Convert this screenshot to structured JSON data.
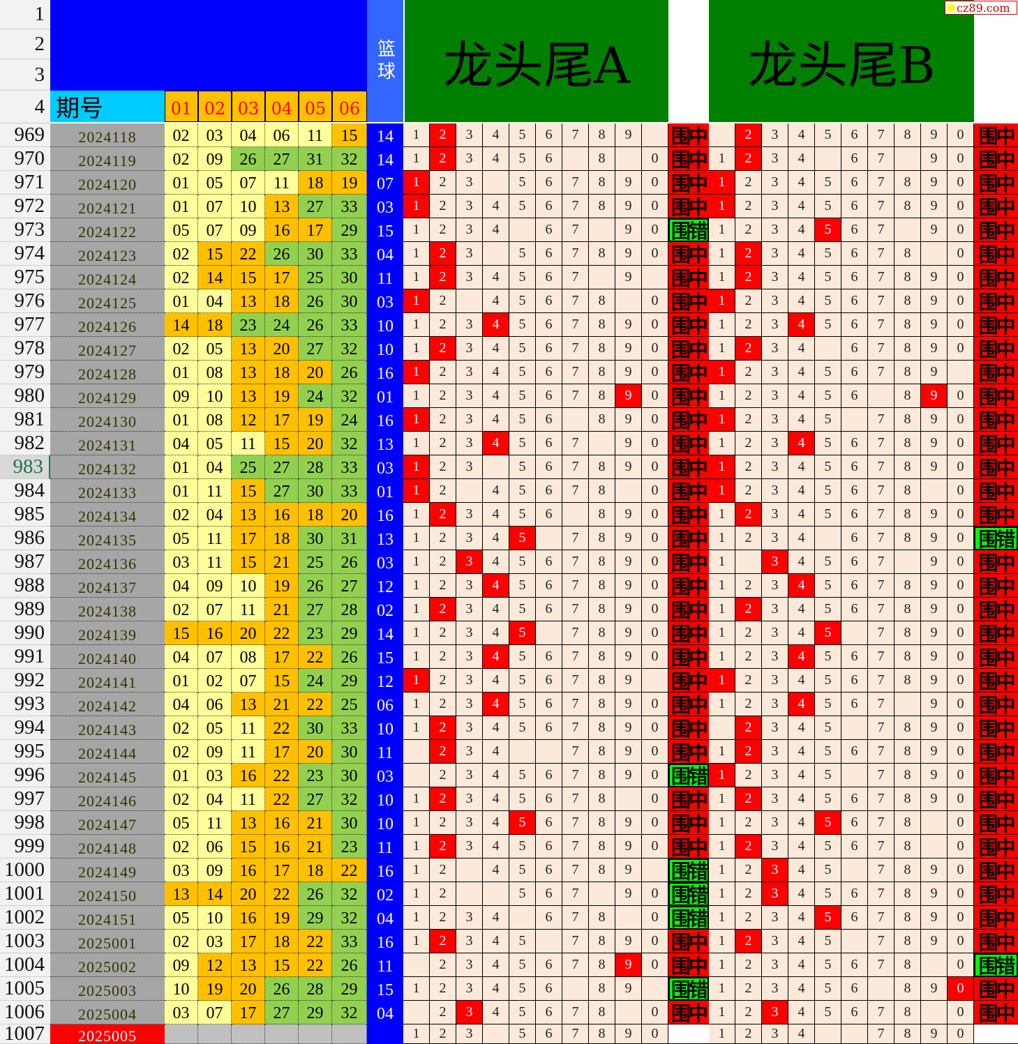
{
  "header": {
    "row_labels": [
      "1",
      "2",
      "3",
      "4"
    ],
    "period_label": "期号",
    "num_labels": [
      "01",
      "02",
      "03",
      "04",
      "05",
      "06"
    ],
    "blue_label": "篮球",
    "panel_a_title": "龙头尾A",
    "panel_b_title": "龙头尾B",
    "watermark": "cz89.com"
  },
  "colors": {
    "low": "#ffff99",
    "mid": "#ffc000",
    "high": "#92d050",
    "hit": "#ff0000",
    "hit_result": "#ff0000",
    "miss_result": "#00ff00",
    "blue": "#0000ff",
    "grid": "#fde9d9"
  },
  "digits": [
    "1",
    "2",
    "3",
    "4",
    "5",
    "6",
    "7",
    "8",
    "9",
    "0"
  ],
  "rows": [
    {
      "row": "969",
      "period": "2024118",
      "nums": [
        "02",
        "03",
        "04",
        "06",
        "11",
        "15"
      ],
      "blue": "14",
      "a_missing": [
        "0"
      ],
      "a_result": "围中",
      "b_missing": [
        "1"
      ],
      "b_result": "围中"
    },
    {
      "row": "970",
      "period": "2024119",
      "nums": [
        "02",
        "09",
        "26",
        "27",
        "31",
        "32"
      ],
      "blue": "14",
      "a_missing": [
        "7",
        "9"
      ],
      "a_result": "围中",
      "b_missing": [
        "5",
        "8"
      ],
      "b_result": "围中"
    },
    {
      "row": "971",
      "period": "2024120",
      "nums": [
        "01",
        "05",
        "07",
        "11",
        "18",
        "19"
      ],
      "blue": "07",
      "a_missing": [
        "4"
      ],
      "a_result": "围中",
      "b_missing": [],
      "b_result": "围中"
    },
    {
      "row": "972",
      "period": "2024121",
      "nums": [
        "01",
        "07",
        "10",
        "13",
        "27",
        "33"
      ],
      "blue": "03",
      "a_missing": [],
      "a_result": "围中",
      "b_missing": [],
      "b_result": "围中"
    },
    {
      "row": "973",
      "period": "2024122",
      "nums": [
        "05",
        "07",
        "09",
        "16",
        "17",
        "29"
      ],
      "blue": "15",
      "a_missing": [
        "5",
        "8"
      ],
      "a_result": "围错",
      "b_missing": [
        "8"
      ],
      "b_result": "围中"
    },
    {
      "row": "974",
      "period": "2024123",
      "nums": [
        "02",
        "15",
        "22",
        "26",
        "30",
        "33"
      ],
      "blue": "04",
      "a_missing": [
        "4"
      ],
      "a_result": "围中",
      "b_missing": [
        "9"
      ],
      "b_result": "围中"
    },
    {
      "row": "975",
      "period": "2024124",
      "nums": [
        "02",
        "14",
        "15",
        "17",
        "25",
        "30"
      ],
      "blue": "11",
      "a_missing": [
        "8",
        "0"
      ],
      "a_result": "围中",
      "b_missing": [],
      "b_result": "围中"
    },
    {
      "row": "976",
      "period": "2024125",
      "nums": [
        "01",
        "04",
        "13",
        "18",
        "26",
        "30"
      ],
      "blue": "03",
      "a_missing": [
        "3",
        "9"
      ],
      "a_result": "围中",
      "b_missing": [],
      "b_result": "围中"
    },
    {
      "row": "977",
      "period": "2024126",
      "nums": [
        "14",
        "18",
        "23",
        "24",
        "26",
        "33"
      ],
      "blue": "10",
      "a_missing": [],
      "a_result": "围中",
      "b_missing": [],
      "b_result": "围中"
    },
    {
      "row": "978",
      "period": "2024127",
      "nums": [
        "02",
        "05",
        "13",
        "20",
        "27",
        "32"
      ],
      "blue": "10",
      "a_missing": [],
      "a_result": "围中",
      "b_missing": [
        "5"
      ],
      "b_result": "围中"
    },
    {
      "row": "979",
      "period": "2024128",
      "nums": [
        "01",
        "08",
        "13",
        "18",
        "20",
        "26"
      ],
      "blue": "16",
      "a_missing": [],
      "a_result": "围中",
      "b_missing": [
        "0"
      ],
      "b_result": "围中"
    },
    {
      "row": "980",
      "period": "2024129",
      "nums": [
        "09",
        "10",
        "13",
        "19",
        "24",
        "32"
      ],
      "blue": "01",
      "a_missing": [],
      "a_result": "围中",
      "b_missing": [
        "7"
      ],
      "b_result": "围中"
    },
    {
      "row": "981",
      "period": "2024130",
      "nums": [
        "01",
        "08",
        "12",
        "17",
        "19",
        "24"
      ],
      "blue": "16",
      "a_missing": [
        "7"
      ],
      "a_result": "围中",
      "b_missing": [
        "6"
      ],
      "b_result": "围中"
    },
    {
      "row": "982",
      "period": "2024131",
      "nums": [
        "04",
        "05",
        "11",
        "15",
        "20",
        "32"
      ],
      "blue": "13",
      "a_missing": [
        "8"
      ],
      "a_result": "围中",
      "b_missing": [],
      "b_result": "围中"
    },
    {
      "row": "983",
      "period": "2024132",
      "nums": [
        "01",
        "04",
        "25",
        "27",
        "28",
        "33"
      ],
      "blue": "03",
      "a_missing": [
        "4"
      ],
      "a_result": "围中",
      "b_missing": [],
      "b_result": "围中"
    },
    {
      "row": "984",
      "period": "2024133",
      "nums": [
        "01",
        "11",
        "15",
        "27",
        "30",
        "33"
      ],
      "blue": "01",
      "a_missing": [
        "3",
        "9"
      ],
      "a_result": "围中",
      "b_missing": [
        "9"
      ],
      "b_result": "围中"
    },
    {
      "row": "985",
      "period": "2024134",
      "nums": [
        "02",
        "04",
        "13",
        "16",
        "18",
        "20"
      ],
      "blue": "16",
      "a_missing": [
        "7"
      ],
      "a_result": "围中",
      "b_missing": [],
      "b_result": "围中"
    },
    {
      "row": "986",
      "period": "2024135",
      "nums": [
        "05",
        "11",
        "17",
        "18",
        "30",
        "31"
      ],
      "blue": "13",
      "a_missing": [
        "6"
      ],
      "a_result": "围中",
      "b_missing": [
        "5"
      ],
      "b_result": "围错"
    },
    {
      "row": "987",
      "period": "2024136",
      "nums": [
        "03",
        "11",
        "15",
        "21",
        "25",
        "26"
      ],
      "blue": "03",
      "a_missing": [],
      "a_result": "围中",
      "b_missing": [
        "2",
        "8"
      ],
      "b_result": "围中"
    },
    {
      "row": "988",
      "period": "2024137",
      "nums": [
        "04",
        "09",
        "10",
        "19",
        "26",
        "27"
      ],
      "blue": "12",
      "a_missing": [],
      "a_result": "围中",
      "b_missing": [],
      "b_result": "围中"
    },
    {
      "row": "989",
      "period": "2024138",
      "nums": [
        "02",
        "07",
        "11",
        "21",
        "27",
        "28"
      ],
      "blue": "02",
      "a_missing": [],
      "a_result": "围中",
      "b_missing": [],
      "b_result": "围中"
    },
    {
      "row": "990",
      "period": "2024139",
      "nums": [
        "15",
        "16",
        "20",
        "22",
        "23",
        "29"
      ],
      "blue": "14",
      "a_missing": [
        "6"
      ],
      "a_result": "围中",
      "b_missing": [
        "6"
      ],
      "b_result": "围中"
    },
    {
      "row": "991",
      "period": "2024140",
      "nums": [
        "04",
        "07",
        "08",
        "17",
        "22",
        "26"
      ],
      "blue": "15",
      "a_missing": [],
      "a_result": "围中",
      "b_missing": [],
      "b_result": "围中"
    },
    {
      "row": "992",
      "period": "2024141",
      "nums": [
        "01",
        "02",
        "07",
        "15",
        "24",
        "29"
      ],
      "blue": "12",
      "a_missing": [
        "0"
      ],
      "a_result": "围中",
      "b_missing": [],
      "b_result": "围中"
    },
    {
      "row": "993",
      "period": "2024142",
      "nums": [
        "04",
        "06",
        "13",
        "21",
        "22",
        "25"
      ],
      "blue": "06",
      "a_missing": [],
      "a_result": "围中",
      "b_missing": [
        "8"
      ],
      "b_result": "围中"
    },
    {
      "row": "994",
      "period": "2024143",
      "nums": [
        "02",
        "05",
        "11",
        "22",
        "30",
        "33"
      ],
      "blue": "10",
      "a_missing": [],
      "a_result": "围中",
      "b_missing": [
        "1",
        "6"
      ],
      "b_result": "围中"
    },
    {
      "row": "995",
      "period": "2024144",
      "nums": [
        "02",
        "09",
        "11",
        "17",
        "20",
        "30"
      ],
      "blue": "11",
      "a_missing": [
        "1",
        "5",
        "6"
      ],
      "a_result": "围中",
      "b_missing": [],
      "b_result": "围中"
    },
    {
      "row": "996",
      "period": "2024145",
      "nums": [
        "01",
        "03",
        "16",
        "22",
        "23",
        "30"
      ],
      "blue": "03",
      "a_missing": [
        "1"
      ],
      "a_result": "围错",
      "b_missing": [
        "6"
      ],
      "b_result": "围中"
    },
    {
      "row": "997",
      "period": "2024146",
      "nums": [
        "02",
        "04",
        "11",
        "22",
        "27",
        "32"
      ],
      "blue": "10",
      "a_missing": [
        "9"
      ],
      "a_result": "围中",
      "b_missing": [],
      "b_result": "围中"
    },
    {
      "row": "998",
      "period": "2024147",
      "nums": [
        "05",
        "11",
        "13",
        "16",
        "21",
        "30"
      ],
      "blue": "10",
      "a_missing": [],
      "a_result": "围中",
      "b_missing": [
        "9"
      ],
      "b_result": "围中"
    },
    {
      "row": "999",
      "period": "2024148",
      "nums": [
        "02",
        "06",
        "15",
        "16",
        "21",
        "23"
      ],
      "blue": "11",
      "a_missing": [],
      "a_result": "围中",
      "b_missing": [
        "9"
      ],
      "b_result": "围中"
    },
    {
      "row": "1000",
      "period": "2024149",
      "nums": [
        "03",
        "09",
        "16",
        "17",
        "18",
        "22"
      ],
      "blue": "16",
      "a_missing": [
        "3",
        "0"
      ],
      "a_result": "围错",
      "b_missing": [
        "6"
      ],
      "b_result": "围中"
    },
    {
      "row": "1001",
      "period": "2024150",
      "nums": [
        "13",
        "14",
        "20",
        "22",
        "26",
        "32"
      ],
      "blue": "02",
      "a_missing": [
        "3",
        "4",
        "8"
      ],
      "a_result": "围错",
      "b_missing": [],
      "b_result": "围中"
    },
    {
      "row": "1002",
      "period": "2024151",
      "nums": [
        "05",
        "10",
        "16",
        "19",
        "29",
        "32"
      ],
      "blue": "04",
      "a_missing": [
        "5",
        "9"
      ],
      "a_result": "围错",
      "b_missing": [],
      "b_result": "围中"
    },
    {
      "row": "1003",
      "period": "2025001",
      "nums": [
        "02",
        "03",
        "17",
        "18",
        "22",
        "33"
      ],
      "blue": "16",
      "a_missing": [
        "6"
      ],
      "a_result": "围中",
      "b_missing": [
        "6"
      ],
      "b_result": "围中"
    },
    {
      "row": "1004",
      "period": "2025002",
      "nums": [
        "09",
        "12",
        "13",
        "15",
        "22",
        "26"
      ],
      "blue": "11",
      "a_missing": [
        "1"
      ],
      "a_result": "围中",
      "b_missing": [
        "9"
      ],
      "b_result": "围错"
    },
    {
      "row": "1005",
      "period": "2025003",
      "nums": [
        "10",
        "19",
        "20",
        "26",
        "28",
        "29"
      ],
      "blue": "15",
      "a_missing": [
        "7",
        "0"
      ],
      "a_result": "围错",
      "b_missing": [
        "7"
      ],
      "b_result": "围中"
    },
    {
      "row": "1006",
      "period": "2025004",
      "nums": [
        "03",
        "07",
        "17",
        "27",
        "29",
        "32"
      ],
      "blue": "04",
      "a_missing": [
        "1",
        "9"
      ],
      "a_result": "围中",
      "b_missing": [
        "9"
      ],
      "b_result": "围中"
    },
    {
      "row": "1007",
      "period": "2025005",
      "nums": [],
      "blue": "",
      "a_missing": [
        "4"
      ],
      "a_result": "",
      "b_missing": [
        "5",
        "6"
      ],
      "b_result": ""
    }
  ]
}
